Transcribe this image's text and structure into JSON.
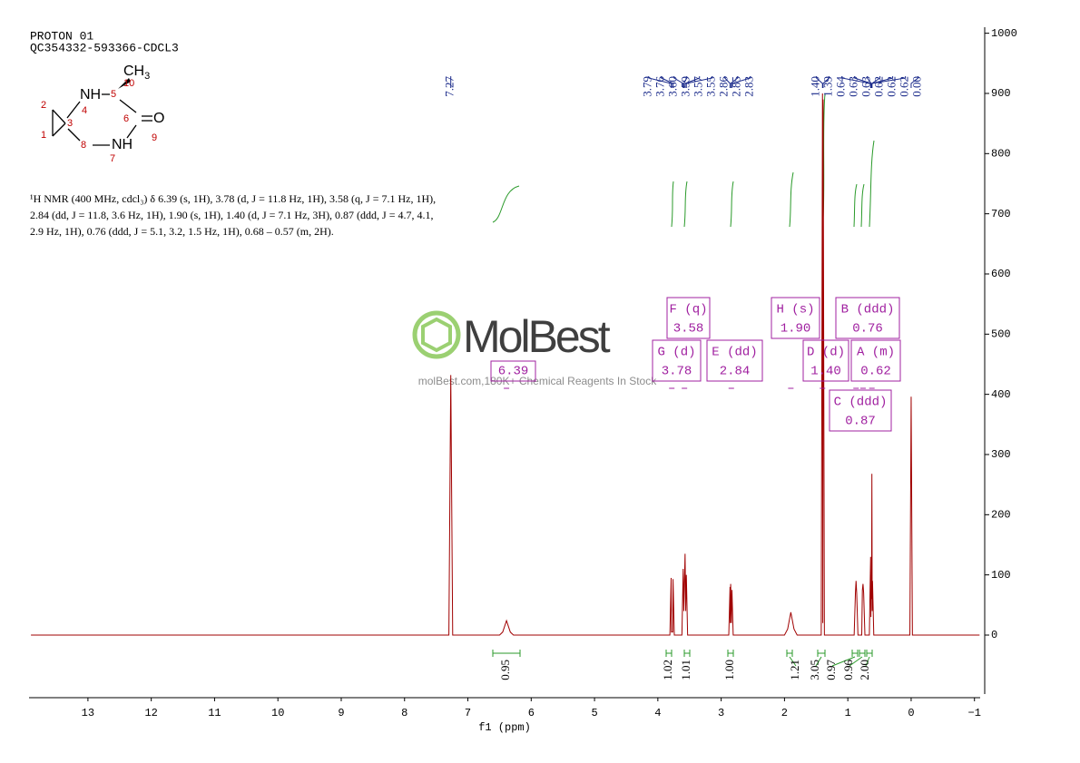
{
  "header": {
    "title": "PROTON 01",
    "sample": "QC354332-593366-CDCL3"
  },
  "description": [
    "¹H NMR (400 MHz, cdcl₃) δ 6.39 (s, 1H), 3.78 (d, J = 11.8 Hz, 1H), 3.58 (q, J = 7.1 Hz, 1H),",
    "2.84 (dd, J = 11.8, 3.6 Hz, 1H), 1.90 (s, 1H), 1.40 (d, J = 7.1 Hz, 3H), 0.87 (ddd, J = 4.7, 4.1,",
    "2.9 Hz, 1H), 0.76 (ddd, J = 5.1, 3.2, 1.5 Hz, 1H), 0.68 – 0.57 (m, 2H)."
  ],
  "molecule": {
    "methyl": "CH",
    "methyl_sub": "3",
    "amine_top": "NH",
    "amine_bottom": "NH",
    "oxygen": "O",
    "atom_numbers": [
      1,
      2,
      3,
      4,
      5,
      6,
      7,
      8,
      9,
      10
    ]
  },
  "watermark": {
    "brand": "MolBest",
    "tagline": "molBest.com,180K+ Chemical Reagents In Stock"
  },
  "chart_data": {
    "type": "line",
    "xlabel": "f1 (ppm)",
    "color": "#a00000",
    "xlim": [
      13.93,
      -1.09
    ],
    "ylim": [
      -98,
      1010
    ],
    "xticks": [
      13,
      12,
      11,
      10,
      9,
      8,
      7,
      6,
      5,
      4,
      3,
      2,
      1,
      0,
      {
        "value": -1,
        "label": "−1"
      }
    ],
    "yticks": [
      0,
      100,
      200,
      300,
      400,
      500,
      600,
      700,
      800,
      900,
      1000
    ],
    "x": [
      13.9,
      7.3,
      7.27,
      7.24,
      6.5,
      6.45,
      6.39,
      6.33,
      6.28,
      3.81,
      3.79,
      3.785,
      3.765,
      3.76,
      3.74,
      3.62,
      3.6,
      3.59,
      3.57,
      3.56,
      3.55,
      3.53,
      2.88,
      2.86,
      2.855,
      2.85,
      2.84,
      2.83,
      2.81,
      2.0,
      1.95,
      1.9,
      1.85,
      1.8,
      1.42,
      1.4,
      1.395,
      1.39,
      1.37,
      0.9,
      0.88,
      0.87,
      0.86,
      0.84,
      0.78,
      0.77,
      0.76,
      0.75,
      0.73,
      0.66,
      0.64,
      0.635,
      0.63,
      0.625,
      0.62,
      0.615,
      0.61,
      0.59,
      0.02,
      0.0,
      -0.02,
      -1.08
    ],
    "values": [
      0,
      0,
      432,
      0,
      0,
      5,
      24,
      5,
      0,
      0,
      95,
      5,
      5,
      93,
      0,
      0,
      110,
      40,
      135,
      40,
      100,
      0,
      0,
      80,
      20,
      85,
      20,
      75,
      0,
      0,
      10,
      38,
      10,
      0,
      0,
      900,
      20,
      890,
      0,
      0,
      70,
      90,
      70,
      0,
      0,
      75,
      85,
      70,
      0,
      0,
      130,
      30,
      100,
      60,
      268,
      40,
      90,
      0,
      0,
      396,
      0,
      0
    ],
    "peak_labels": [
      7.27,
      3.79,
      3.76,
      {
        "value": 3.6,
        "label": "3.60"
      },
      3.59,
      3.57,
      3.55,
      2.86,
      2.85,
      2.83,
      {
        "value": 1.4,
        "label": "1.40"
      },
      1.39,
      0.64,
      0.63,
      0.63,
      0.62,
      0.62,
      0.62,
      {
        "value": 0,
        "label": "0.00"
      }
    ],
    "multiplets": [
      {
        "label": "F (q)",
        "shift": 3.58
      },
      {
        "label": "G (d)",
        "shift": 3.78
      },
      {
        "label": "E (dd)",
        "shift": 2.84
      },
      {
        "label": "H (s)",
        "shift": {
          "value": 1.9,
          "label": "1.90"
        }
      },
      {
        "label": "D (d)",
        "shift": {
          "value": 1.4,
          "label": "1.40"
        }
      },
      {
        "label": "B (ddd)",
        "shift": 0.76
      },
      {
        "label": "A (m)",
        "shift": 0.62
      },
      {
        "label": "C (ddd)",
        "shift": 0.87
      },
      {
        "shift": 6.39
      }
    ],
    "integrals": [
      0.95,
      1.02,
      1.01,
      {
        "value": 1,
        "label": "1.00"
      },
      1.21,
      3.05,
      0.97,
      0.96,
      {
        "value": 2,
        "label": "2.00"
      }
    ]
  }
}
